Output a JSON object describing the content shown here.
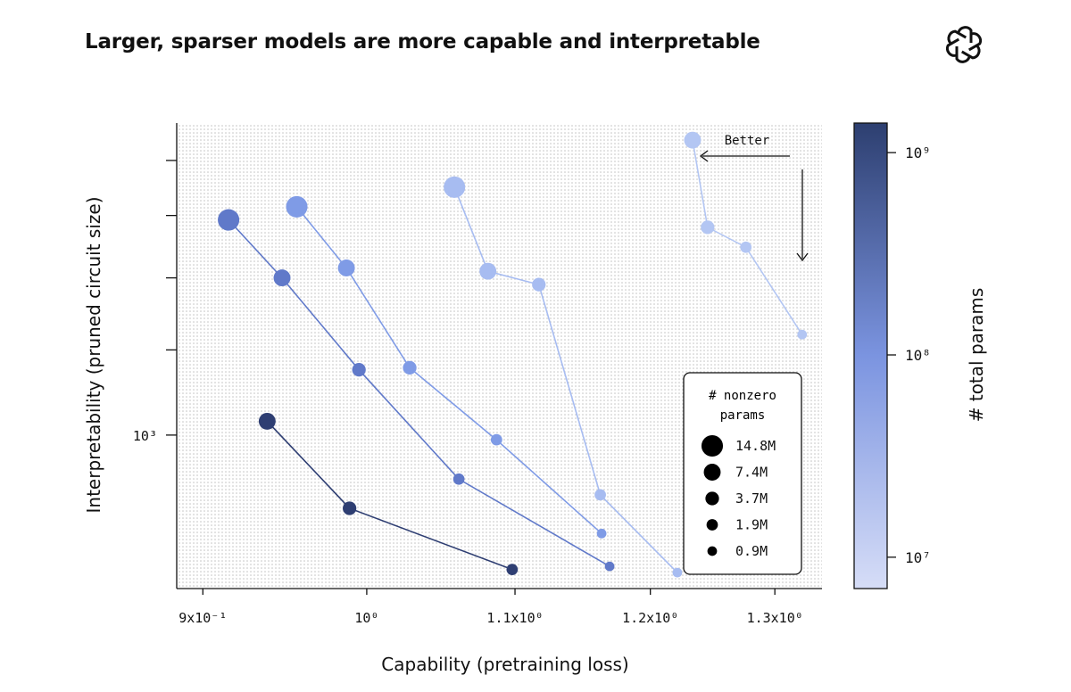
{
  "chart_data": {
    "type": "scatter",
    "title": "Larger, sparser models are more capable and interpretable",
    "xlabel": "Capability (pretraining loss)",
    "ylabel": "Interpretability (pruned circuit size)",
    "x_scale": "log",
    "y_scale": "log",
    "xlim": [
      0.885,
      1.34
    ],
    "ylim": [
      720,
      1950
    ],
    "x_ticks": [
      {
        "value": 0.9,
        "label": "9x10⁻¹"
      },
      {
        "value": 1.0,
        "label": "10⁰"
      },
      {
        "value": 1.1,
        "label": "1.1x10⁰"
      },
      {
        "value": 1.2,
        "label": "1.2x10⁰"
      },
      {
        "value": 1.3,
        "label": "1.3x10⁰"
      }
    ],
    "y_ticks": [
      {
        "value": 1000,
        "label": "10³"
      },
      {
        "value": 1200,
        "label": ""
      },
      {
        "value": 1400,
        "label": ""
      },
      {
        "value": 1600,
        "label": ""
      },
      {
        "value": 1800,
        "label": ""
      }
    ],
    "annotation": "Better",
    "colorbar": {
      "label": "# total params",
      "scale": "log",
      "range": [
        7000000,
        1400000000
      ],
      "ticks": [
        {
          "value": 10000000,
          "label": "10⁷"
        },
        {
          "value": 100000000,
          "label": "10⁸"
        },
        {
          "value": 1000000000,
          "label": "10⁹"
        }
      ],
      "color_low": "#d6ddf7",
      "color_mid": "#7b94e0",
      "color_high": "#2d3f70"
    },
    "size_legend": {
      "title_line1": "# nonzero",
      "title_line2": "params",
      "entries": [
        {
          "label": "14.8M",
          "nonzero": 14.8
        },
        {
          "label": "7.4M",
          "nonzero": 7.4
        },
        {
          "label": "3.7M",
          "nonzero": 3.7
        },
        {
          "label": "1.9M",
          "nonzero": 1.9
        },
        {
          "label": "0.9M",
          "nonzero": 0.9
        }
      ]
    },
    "series": [
      {
        "name": "series-1",
        "color": "#b3c6f3",
        "points": [
          {
            "x": 1.233,
            "y": 1880,
            "nonzero": 7.4
          },
          {
            "x": 1.245,
            "y": 1560,
            "nonzero": 3.7
          },
          {
            "x": 1.276,
            "y": 1495,
            "nonzero": 1.9
          },
          {
            "x": 1.323,
            "y": 1240,
            "nonzero": 0.9
          }
        ]
      },
      {
        "name": "series-2",
        "color": "#a7bcf1",
        "points": [
          {
            "x": 1.058,
            "y": 1700,
            "nonzero": 14.8
          },
          {
            "x": 1.081,
            "y": 1420,
            "nonzero": 7.4
          },
          {
            "x": 1.117,
            "y": 1380,
            "nonzero": 3.7
          },
          {
            "x": 1.162,
            "y": 880,
            "nonzero": 1.9
          },
          {
            "x": 1.221,
            "y": 745,
            "nonzero": 0.9
          }
        ]
      },
      {
        "name": "series-3",
        "color": "#7f9be6",
        "points": [
          {
            "x": 0.956,
            "y": 1630,
            "nonzero": 14.8
          },
          {
            "x": 0.987,
            "y": 1430,
            "nonzero": 7.4
          },
          {
            "x": 1.028,
            "y": 1155,
            "nonzero": 3.7
          },
          {
            "x": 1.087,
            "y": 990,
            "nonzero": 1.9
          },
          {
            "x": 1.163,
            "y": 810,
            "nonzero": 0.9
          }
        ]
      },
      {
        "name": "series-4",
        "color": "#6079c9",
        "points": [
          {
            "x": 0.915,
            "y": 1585,
            "nonzero": 14.8
          },
          {
            "x": 0.947,
            "y": 1400,
            "nonzero": 7.4
          },
          {
            "x": 0.995,
            "y": 1150,
            "nonzero": 3.7
          },
          {
            "x": 1.061,
            "y": 910,
            "nonzero": 1.9
          },
          {
            "x": 1.169,
            "y": 755,
            "nonzero": 0.9
          }
        ]
      },
      {
        "name": "series-5",
        "color": "#2e3e72",
        "points": [
          {
            "x": 0.938,
            "y": 1030,
            "nonzero": 7.4
          },
          {
            "x": 0.989,
            "y": 855,
            "nonzero": 3.7
          },
          {
            "x": 1.098,
            "y": 750,
            "nonzero": 1.9
          }
        ]
      }
    ]
  }
}
